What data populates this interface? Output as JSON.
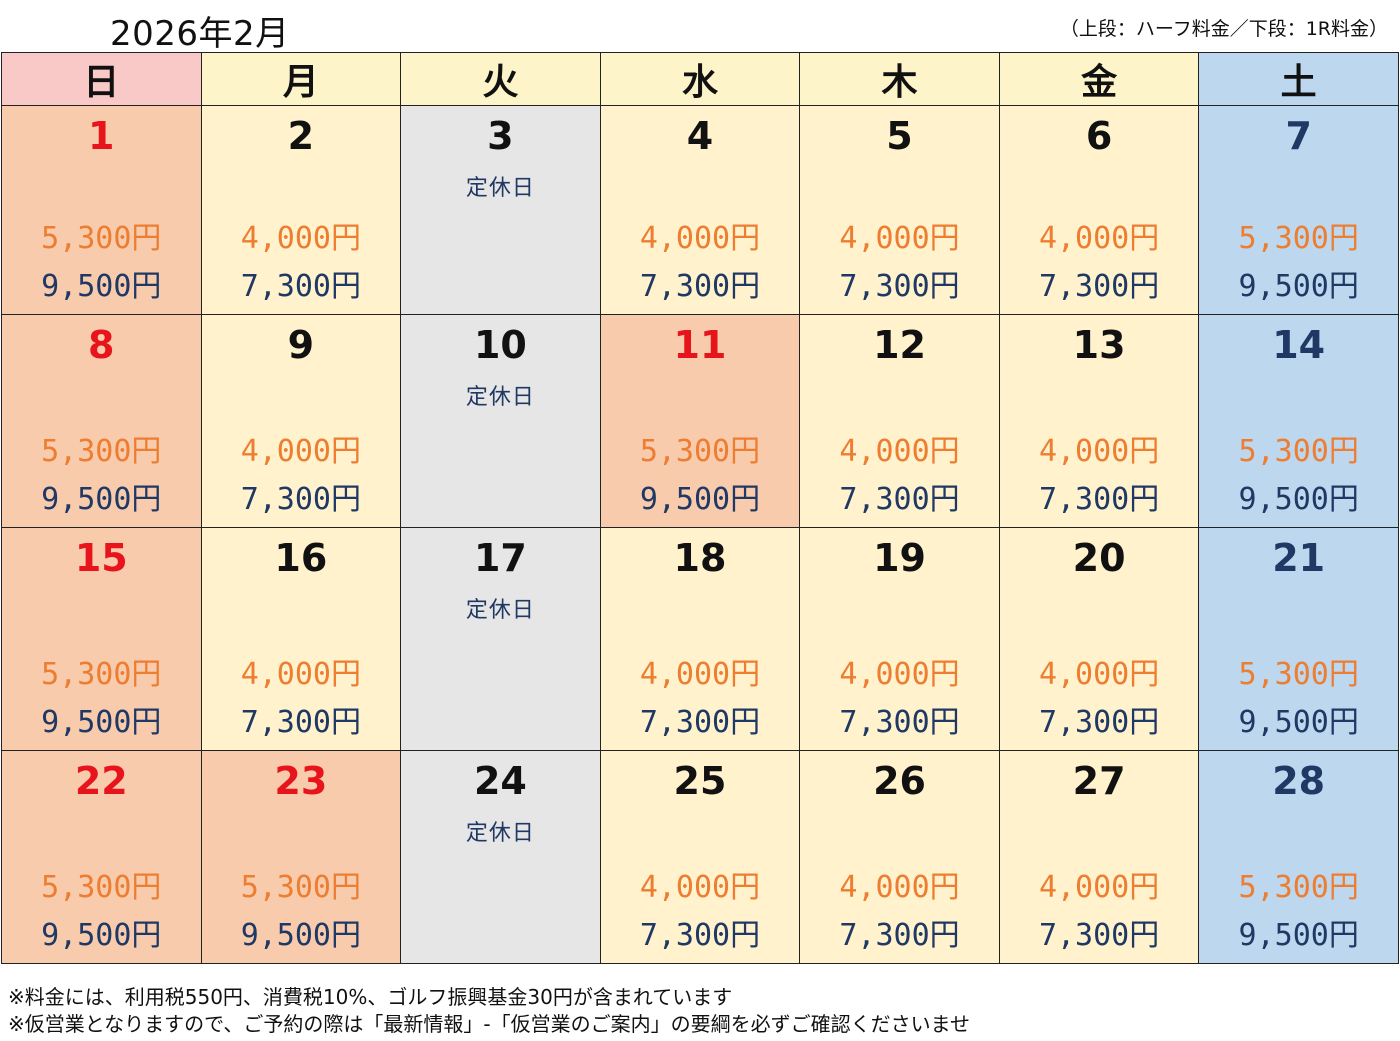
{
  "title": "2026年2月",
  "legend": "（上段：ハーフ料金／下段：1R料金）",
  "weekdays": [
    "日",
    "月",
    "火",
    "水",
    "木",
    "金",
    "土"
  ],
  "weeks": [
    [
      {
        "day": "1",
        "p1": "5,300円",
        "p2": "9,500円"
      },
      {
        "day": "2",
        "p1": "4,000円",
        "p2": "7,300円"
      },
      {
        "day": "3",
        "closed": "定休日"
      },
      {
        "day": "4",
        "p1": "4,000円",
        "p2": "7,300円"
      },
      {
        "day": "5",
        "p1": "4,000円",
        "p2": "7,300円"
      },
      {
        "day": "6",
        "p1": "4,000円",
        "p2": "7,300円"
      },
      {
        "day": "7",
        "p1": "5,300円",
        "p2": "9,500円"
      }
    ],
    [
      {
        "day": "8",
        "p1": "5,300円",
        "p2": "9,500円"
      },
      {
        "day": "9",
        "p1": "4,000円",
        "p2": "7,300円"
      },
      {
        "day": "10",
        "closed": "定休日"
      },
      {
        "day": "11",
        "p1": "5,300円",
        "p2": "9,500円"
      },
      {
        "day": "12",
        "p1": "4,000円",
        "p2": "7,300円"
      },
      {
        "day": "13",
        "p1": "4,000円",
        "p2": "7,300円"
      },
      {
        "day": "14",
        "p1": "5,300円",
        "p2": "9,500円"
      }
    ],
    [
      {
        "day": "15",
        "p1": "5,300円",
        "p2": "9,500円"
      },
      {
        "day": "16",
        "p1": "4,000円",
        "p2": "7,300円"
      },
      {
        "day": "17",
        "closed": "定休日"
      },
      {
        "day": "18",
        "p1": "4,000円",
        "p2": "7,300円"
      },
      {
        "day": "19",
        "p1": "4,000円",
        "p2": "7,300円"
      },
      {
        "day": "20",
        "p1": "4,000円",
        "p2": "7,300円"
      },
      {
        "day": "21",
        "p1": "5,300円",
        "p2": "9,500円"
      }
    ],
    [
      {
        "day": "22",
        "p1": "5,300円",
        "p2": "9,500円"
      },
      {
        "day": "23",
        "p1": "5,300円",
        "p2": "9,500円"
      },
      {
        "day": "24",
        "closed": "定休日"
      },
      {
        "day": "25",
        "p1": "4,000円",
        "p2": "7,300円"
      },
      {
        "day": "26",
        "p1": "4,000円",
        "p2": "7,300円"
      },
      {
        "day": "27",
        "p1": "4,000円",
        "p2": "7,300円"
      },
      {
        "day": "28",
        "p1": "5,300円",
        "p2": "9,500円"
      }
    ]
  ],
  "notes": [
    "※料金には、利用税550円、消費税10%、ゴルフ振興基金30円が含まれています",
    "※仮営業となりますので、ご予約の際は「最新情報」-「仮営業のご案内」の要綱を必ずご確認くださいませ"
  ],
  "colors": {
    "holiday_bg": "#f8cbad",
    "weekday_bg": "#fff2cc",
    "closed_bg": "#e7e6e6",
    "saturday_bg": "#bdd7ee",
    "sunday_text": "#e8141b",
    "half_price_text": "#ed7d31",
    "round_price_text": "#1f3864"
  }
}
